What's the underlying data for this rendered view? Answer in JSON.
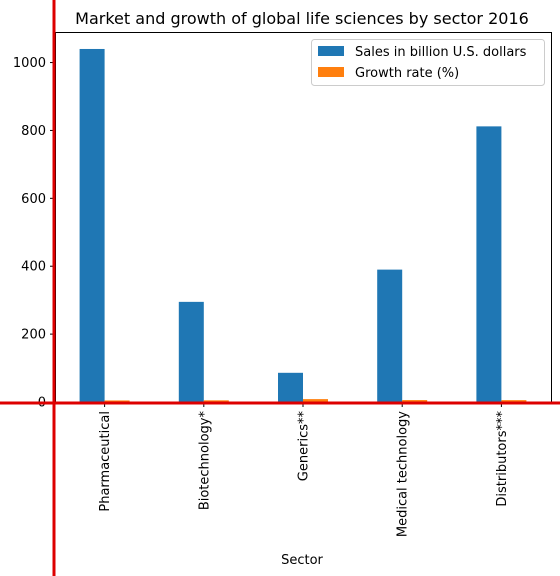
{
  "chart_data": {
    "type": "bar",
    "title": "Market and growth of global life sciences by sector 2016",
    "xlabel": "Sector",
    "ylabel": "",
    "categories": [
      "Pharmaceutical",
      "Biotechnology*",
      "Generics**",
      "Medical technology",
      "Distributors***"
    ],
    "series": [
      {
        "name": "Sales in billion U.S. dollars",
        "color": "#1f77b4",
        "values": [
          1040,
          295,
          86,
          390,
          812
        ]
      },
      {
        "name": "Growth rate (%)",
        "color": "#ff7f0e",
        "values": [
          4.6,
          4.9,
          8.5,
          5.7,
          5.5
        ]
      }
    ],
    "ylim": [
      0,
      1090
    ],
    "yticks": [
      0,
      200,
      400,
      600,
      800,
      1000
    ],
    "grid": false,
    "legend_position": "top-right",
    "overlay_line_color": "#dd0000"
  }
}
